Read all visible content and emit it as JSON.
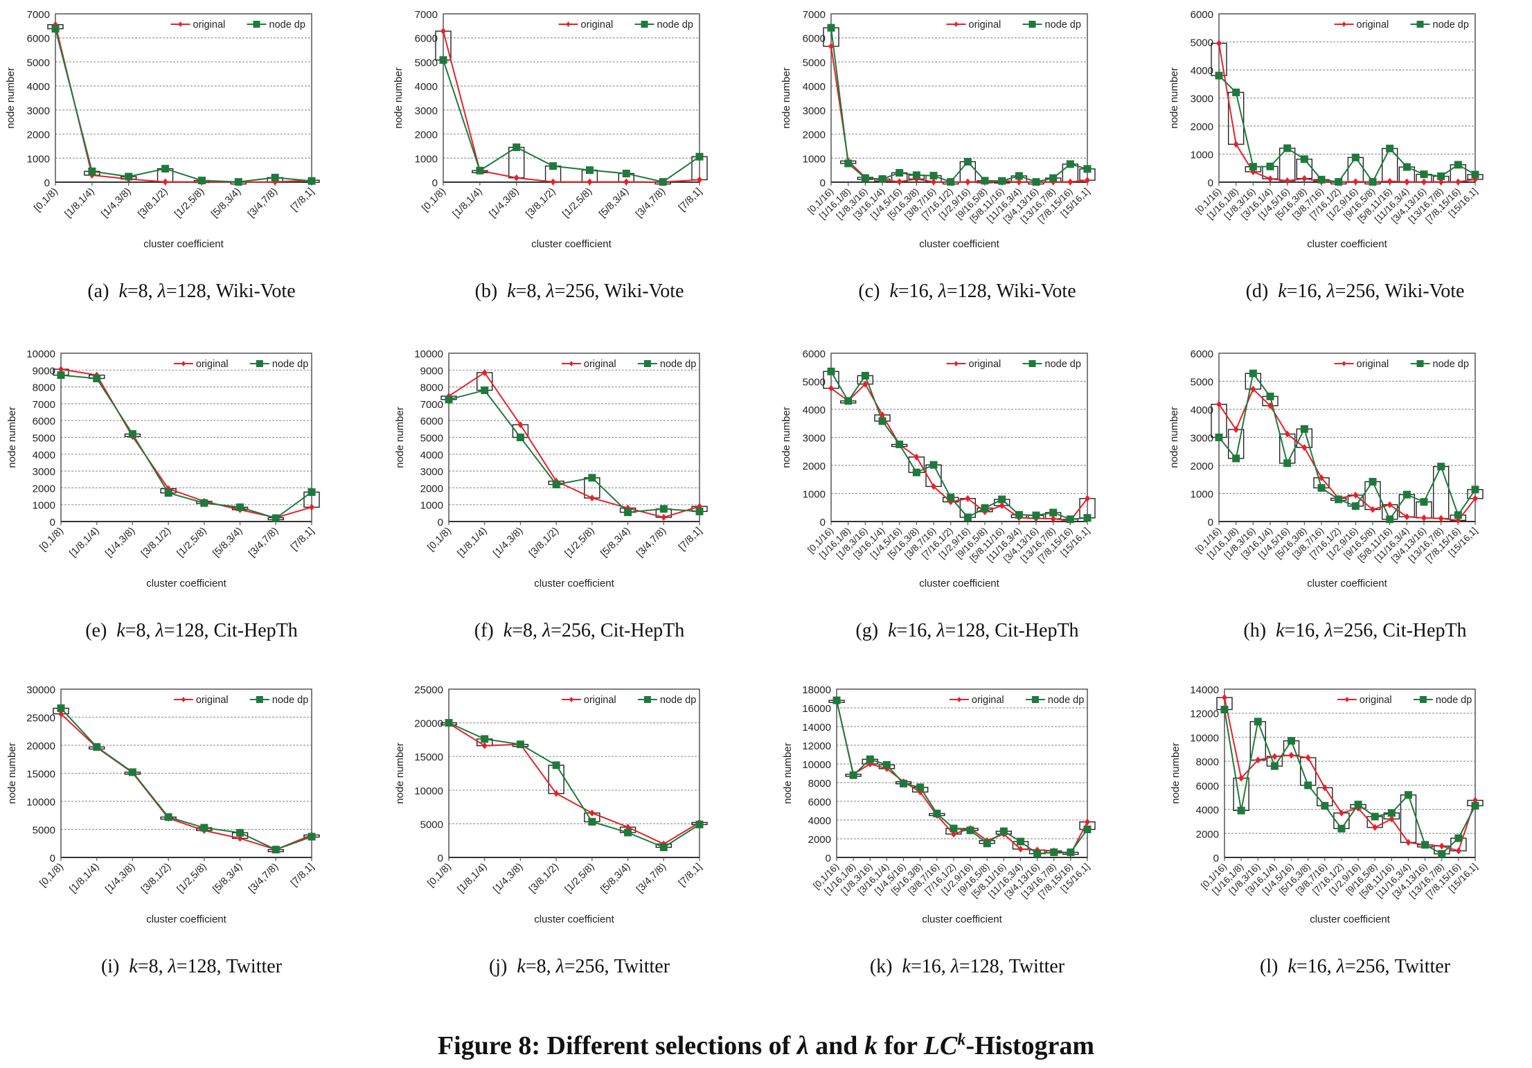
{
  "figure_caption": {
    "prefix": "Figure 8: Different selections of ",
    "lambda": "λ",
    "mid": " and ",
    "k": "k",
    "for": " for ",
    "lc": "LC",
    "sup": "k",
    "suffix": "-Histogram"
  },
  "legend": {
    "original": "original",
    "node_dp": "node dp"
  },
  "colors": {
    "original": "#e8202a",
    "node_dp": "#1e7a3c",
    "box": "#222222",
    "grid": "#9a9a9a"
  },
  "chart_data": [
    {
      "id": "a",
      "type": "line",
      "label": "(a)",
      "k": "8",
      "lambda": "128",
      "dataset": "Wiki-Vote",
      "xlabel": "cluster coefficient",
      "ylabel": "node number",
      "ylim": [
        0,
        7000
      ],
      "ystep": 1000,
      "grid": true,
      "legend": "top-right",
      "categories": [
        "[0,1/8)",
        "[1/8,1/4)",
        "[1/4,3/8)",
        "[3/8,1/2)",
        "[1/2,5/8)",
        "[5/8,3/4)",
        "[3/4,7/8)",
        "[7/8,1]"
      ],
      "series": [
        {
          "name": "original",
          "values": [
            6550,
            290,
            130,
            10,
            10,
            5,
            10,
            80
          ]
        },
        {
          "name": "node dp",
          "values": [
            6380,
            450,
            230,
            560,
            70,
            10,
            190,
            50
          ]
        }
      ]
    },
    {
      "id": "b",
      "type": "line",
      "label": "(b)",
      "k": "8",
      "lambda": "256",
      "dataset": "Wiki-Vote",
      "xlabel": "cluster coefficient",
      "ylabel": "node number",
      "ylim": [
        0,
        7000
      ],
      "ystep": 1000,
      "grid": true,
      "legend": "top-right",
      "categories": [
        "[0,1/8)",
        "[1/8,1/4)",
        "[1/4,3/8)",
        "[3/8,1/2)",
        "[1/2,5/8)",
        "[5/8,3/4)",
        "[3/4,7/8)",
        "[7/8,1]"
      ],
      "series": [
        {
          "name": "original",
          "values": [
            6280,
            480,
            180,
            10,
            10,
            10,
            5,
            100
          ]
        },
        {
          "name": "node dp",
          "values": [
            5080,
            480,
            1450,
            670,
            500,
            360,
            10,
            1060
          ]
        }
      ]
    },
    {
      "id": "c",
      "type": "line",
      "label": "(c)",
      "k": "16",
      "lambda": "128",
      "dataset": "Wiki-Vote",
      "xlabel": "cluster coefficient",
      "ylabel": "node number",
      "ylim": [
        0,
        7000
      ],
      "ystep": 1000,
      "grid": true,
      "legend": "top-right",
      "categories": [
        "[0,1/16)",
        "[1/16,1/8)",
        "[1/8,3/16)",
        "[3/16,1/4)",
        "[1/4,5/16)",
        "[5/16,3/8)",
        "[3/8,7/16)",
        "[7/16,1/2)",
        "[1/2,9/16)",
        "[9/16,5/8)",
        "[5/8,11/16)",
        "[11/16,3/4)",
        "[3/4,13/16)",
        "[13/16,7/8)",
        "[7/8,15/16)",
        "[15/16,1]"
      ],
      "series": [
        {
          "name": "original",
          "values": [
            5650,
            880,
            200,
            80,
            20,
            130,
            10,
            5,
            10,
            10,
            20,
            10,
            5,
            10,
            10,
            80
          ]
        },
        {
          "name": "node dp",
          "values": [
            6420,
            780,
            170,
            130,
            390,
            290,
            270,
            10,
            850,
            60,
            50,
            260,
            10,
            170,
            750,
            550
          ]
        }
      ]
    },
    {
      "id": "d",
      "type": "line",
      "label": "(d)",
      "k": "16",
      "lambda": "256",
      "dataset": "Wiki-Vote",
      "xlabel": "cluster coefficient",
      "ylabel": "node number",
      "ylim": [
        0,
        6000
      ],
      "ystep": 1000,
      "grid": true,
      "legend": "top-right",
      "categories": [
        "[0,1/16)",
        "[1/16,1/8)",
        "[1/8,3/16)",
        "[3/16,1/4)",
        "[1/4,5/16)",
        "[5/16,3/8)",
        "[3/8,7/16)",
        "[7/16,1/2)",
        "[1/2,9/16)",
        "[9/16,5/8)",
        "[5/8,11/16)",
        "[11/16,3/4)",
        "[3/4,13/16)",
        "[13/16,7/8)",
        "[7/8,15/16)",
        "[15/16,1]"
      ],
      "series": [
        {
          "name": "original",
          "values": [
            4950,
            1350,
            370,
            120,
            50,
            130,
            20,
            5,
            20,
            5,
            30,
            10,
            10,
            10,
            10,
            100
          ]
        },
        {
          "name": "node dp",
          "values": [
            3800,
            3200,
            550,
            560,
            1210,
            820,
            90,
            10,
            880,
            10,
            1200,
            540,
            280,
            210,
            620,
            270
          ]
        }
      ]
    },
    {
      "id": "e",
      "type": "line",
      "label": "(e)",
      "k": "8",
      "lambda": "128",
      "dataset": "Cit-HepTh",
      "xlabel": "cluster coefficient",
      "ylabel": "node number",
      "ylim": [
        0,
        10000
      ],
      "ystep": 1000,
      "grid": true,
      "legend": "top-right",
      "categories": [
        "[0,1/8)",
        "[1/8,1/4)",
        "[1/4,3/8)",
        "[3/8,1/2)",
        "[1/2,5/8)",
        "[5/8,3/4)",
        "[3/4,7/8)",
        "[7/8,1]"
      ],
      "series": [
        {
          "name": "original",
          "values": [
            9050,
            8700,
            5050,
            1950,
            1200,
            700,
            230,
            850
          ]
        },
        {
          "name": "node dp",
          "values": [
            8700,
            8500,
            5200,
            1700,
            1100,
            850,
            200,
            1750
          ]
        }
      ]
    },
    {
      "id": "f",
      "type": "line",
      "label": "(f)",
      "k": "8",
      "lambda": "256",
      "dataset": "Cit-HepTh",
      "xlabel": "cluster coefficient",
      "ylabel": "node number",
      "ylim": [
        0,
        10000
      ],
      "ystep": 1000,
      "grid": true,
      "legend": "top-right",
      "categories": [
        "[0,1/8)",
        "[1/8,1/4)",
        "[1/4,3/8)",
        "[3/8,1/2)",
        "[1/2,5/8)",
        "[5/8,3/4)",
        "[3/4,7/8)",
        "[7/8,1]"
      ],
      "series": [
        {
          "name": "original",
          "values": [
            7450,
            8850,
            5750,
            2400,
            1400,
            800,
            250,
            900
          ]
        },
        {
          "name": "node dp",
          "values": [
            7250,
            7800,
            5000,
            2200,
            2600,
            550,
            750,
            600
          ]
        }
      ]
    },
    {
      "id": "g",
      "type": "line",
      "label": "(g)",
      "k": "16",
      "lambda": "128",
      "dataset": "Cit-HepTh",
      "xlabel": "cluster coefficient",
      "ylabel": "node number",
      "ylim": [
        0,
        6000
      ],
      "ystep": 1000,
      "grid": true,
      "legend": "top-right",
      "categories": [
        "[0,1/16)",
        "[1/16,1/8)",
        "[1/8,3/16)",
        "[3/16,1/4)",
        "[1/4,5/16)",
        "[5/16,3/8)",
        "[3/8,7/16)",
        "[7/16,1/2)",
        "[1/2,9/16)",
        "[9/16,5/8)",
        "[5/8,11/16)",
        "[11/16,3/4)",
        "[3/4,13/16)",
        "[13/16,7/8)",
        "[7/8,15/16)",
        "[15/16,1]"
      ],
      "series": [
        {
          "name": "original",
          "values": [
            4750,
            4300,
            4900,
            3800,
            2750,
            2300,
            1250,
            700,
            820,
            350,
            570,
            140,
            110,
            100,
            30,
            820
          ]
        },
        {
          "name": "node dp",
          "values": [
            5350,
            4300,
            5200,
            3580,
            2750,
            1750,
            2020,
            860,
            150,
            480,
            790,
            240,
            220,
            320,
            80,
            130
          ]
        }
      ]
    },
    {
      "id": "h",
      "type": "line",
      "label": "(h)",
      "k": "16",
      "lambda": "256",
      "dataset": "Cit-HepTh",
      "xlabel": "cluster coefficient",
      "ylabel": "node number",
      "ylim": [
        0,
        6000
      ],
      "ystep": 1000,
      "grid": true,
      "legend": "top-right",
      "categories": [
        "[0,1/16)",
        "[1/16,1/8)",
        "[1/8,3/16)",
        "[3/16,1/4)",
        "[1/4,5/16)",
        "[5/16,3/8)",
        "[3/8,7/16)",
        "[7/16,1/2)",
        "[1/2,9/16)",
        "[9/16,5/8)",
        "[5/8,11/16)",
        "[11/16,3/4)",
        "[3/4,13/16)",
        "[13/16,7/8)",
        "[7/8,15/16)",
        "[15/16,1]"
      ],
      "series": [
        {
          "name": "original",
          "values": [
            4180,
            3280,
            4720,
            4130,
            3120,
            2640,
            1560,
            830,
            940,
            430,
            600,
            170,
            130,
            110,
            40,
            820
          ]
        },
        {
          "name": "node dp",
          "values": [
            3000,
            2250,
            5280,
            4460,
            2080,
            3300,
            1200,
            790,
            550,
            1420,
            80,
            960,
            700,
            1960,
            230,
            1140
          ]
        }
      ]
    },
    {
      "id": "i",
      "type": "line",
      "label": "(i)",
      "k": "8",
      "lambda": "128",
      "dataset": "Twitter",
      "xlabel": "cluster coefficient",
      "ylabel": "node number",
      "ylim": [
        0,
        30000
      ],
      "ystep": 5000,
      "grid": true,
      "legend": "top-right",
      "categories": [
        "[0,1/8)",
        "[1/8,1/4)",
        "[1/4,3/8)",
        "[3/8,1/2)",
        "[1/2,5/8)",
        "[5/8,3/4)",
        "[3/4,7/8)",
        "[7/8,1]"
      ],
      "series": [
        {
          "name": "original",
          "values": [
            25600,
            19600,
            15100,
            7000,
            4800,
            3400,
            1400,
            4000
          ]
        },
        {
          "name": "node dp",
          "values": [
            26600,
            19700,
            15200,
            7200,
            5300,
            4400,
            1400,
            3700
          ]
        }
      ]
    },
    {
      "id": "j",
      "type": "line",
      "label": "(j)",
      "k": "8",
      "lambda": "256",
      "dataset": "Twitter",
      "xlabel": "cluster coefficient",
      "ylabel": "node number",
      "ylim": [
        0,
        25000
      ],
      "ystep": 5000,
      "grid": true,
      "legend": "top-right",
      "categories": [
        "[0,1/8)",
        "[1/8,1/4)",
        "[1/4,3/8)",
        "[3/8,1/2)",
        "[1/2,5/8)",
        "[5/8,3/4)",
        "[3/4,7/8)",
        "[7/8,1]"
      ],
      "series": [
        {
          "name": "original",
          "values": [
            19900,
            16600,
            16800,
            9500,
            6600,
            4500,
            2000,
            5200
          ]
        },
        {
          "name": "node dp",
          "values": [
            20000,
            17600,
            16800,
            13700,
            5300,
            3700,
            1500,
            4900
          ]
        }
      ]
    },
    {
      "id": "k",
      "type": "line",
      "label": "(k)",
      "k": "16",
      "lambda": "128",
      "dataset": "Twitter",
      "xlabel": "cluster coefficient",
      "ylabel": "node number",
      "ylim": [
        0,
        18000
      ],
      "ystep": 2000,
      "grid": true,
      "legend": "top-right",
      "categories": [
        "[0,1/16)",
        "[1/16,1/8)",
        "[1/8,3/16)",
        "[3/16,1/4)",
        "[1/4,5/16)",
        "[5/16,3/8)",
        "[3/8,7/16)",
        "[7/16,1/2)",
        "[1/2,9/16)",
        "[9/16,5/8)",
        "[5/8,11/16)",
        "[11/16,3/4)",
        "[3/4,13/16)",
        "[13/16,7/8)",
        "[7/8,15/16)",
        "[15/16,1]"
      ],
      "series": [
        {
          "name": "original",
          "values": [
            16800,
            8900,
            10000,
            9500,
            8100,
            7000,
            4500,
            2500,
            3100,
            1800,
            2500,
            900,
            800,
            700,
            400,
            3800
          ]
        },
        {
          "name": "node dp",
          "values": [
            16800,
            8800,
            10500,
            9900,
            7900,
            7500,
            4700,
            3100,
            2900,
            1500,
            2800,
            1700,
            400,
            550,
            550,
            3000
          ]
        }
      ]
    },
    {
      "id": "l",
      "type": "line",
      "label": "(l)",
      "k": "16",
      "lambda": "256",
      "dataset": "Twitter",
      "xlabel": "cluster coefficient",
      "ylabel": "node number",
      "ylim": [
        0,
        14000
      ],
      "ystep": 2000,
      "grid": true,
      "legend": "top-right",
      "categories": [
        "[0,1/16)",
        "[1/16,1/8)",
        "[1/8,3/16)",
        "[3/16,1/4)",
        "[1/4,5/16)",
        "[5/16,3/8)",
        "[3/8,7/16)",
        "[7/16,1/2)",
        "[1/2,9/16)",
        "[9/16,5/8)",
        "[5/8,11/16)",
        "[11/16,3/4)",
        "[3/4,13/16)",
        "[13/16,7/8)",
        "[7/8,15/16)",
        "[15/16,1]"
      ],
      "series": [
        {
          "name": "original",
          "values": [
            13300,
            6600,
            8100,
            8400,
            8500,
            8300,
            5800,
            3700,
            4100,
            2500,
            3200,
            1250,
            1050,
            950,
            550,
            4750
          ]
        },
        {
          "name": "node dp",
          "values": [
            12300,
            3900,
            11300,
            7600,
            9700,
            6000,
            4300,
            2400,
            4400,
            3400,
            3700,
            5200,
            1050,
            300,
            1600,
            4300
          ]
        }
      ]
    }
  ]
}
